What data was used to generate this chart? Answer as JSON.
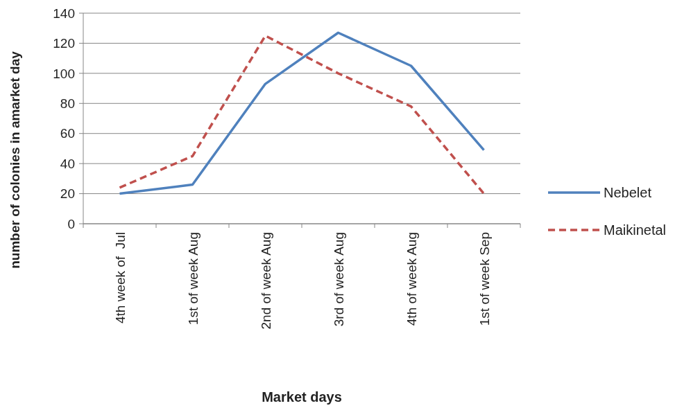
{
  "chart_data": {
    "type": "line",
    "xlabel": "Market days",
    "ylabel": "number of colonies in amarket day",
    "categories": [
      "4th week of  Jul",
      "1st of week Aug",
      "2nd of week Aug",
      "3rd of week Aug",
      "4th of week Aug",
      "1st of week Sep"
    ],
    "series": [
      {
        "name": "Nebelet",
        "color": "#4f81bd",
        "line_style": "solid",
        "values": [
          20,
          26,
          93,
          127,
          105,
          49
        ]
      },
      {
        "name": "Maikinetal",
        "color": "#c0504d",
        "line_style": "dashed",
        "values": [
          24,
          45,
          125,
          100,
          78,
          20
        ]
      }
    ],
    "ylim": [
      0,
      140
    ],
    "yticks": [
      0,
      20,
      40,
      60,
      80,
      100,
      120,
      140
    ],
    "grid": "y",
    "legend": "right"
  }
}
